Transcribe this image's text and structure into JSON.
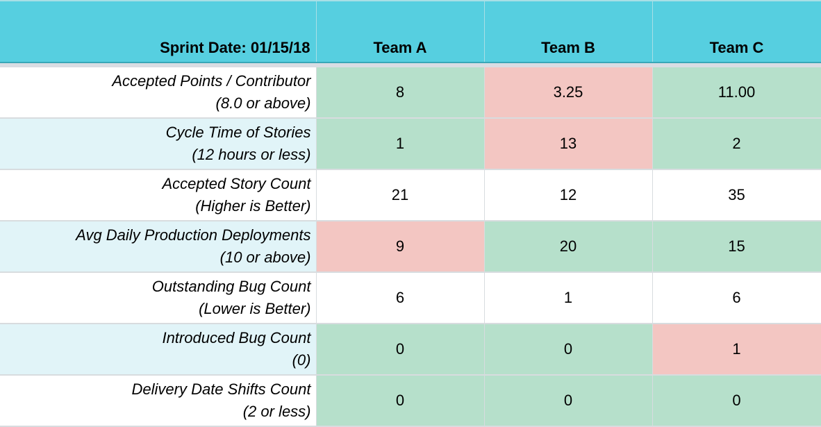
{
  "header": {
    "sprint_date": "Sprint Date: 01/15/18",
    "teams": [
      "Team A",
      "Team B",
      "Team C"
    ]
  },
  "colors": {
    "header_bg": "#56cfe0",
    "good": "#b6e0cb",
    "bad": "#f3c6c2",
    "band": "#e1f4f8"
  },
  "rows": [
    {
      "metric": "Accepted Points / Contributor",
      "target": "(8.0 or above)",
      "values": [
        "8",
        "3.25",
        "11.00"
      ],
      "status": [
        "good",
        "bad",
        "good"
      ]
    },
    {
      "metric": "Cycle Time of Stories",
      "target": "(12 hours or less)",
      "values": [
        "1",
        "13",
        "2"
      ],
      "status": [
        "good",
        "bad",
        "good"
      ]
    },
    {
      "metric": "Accepted Story Count",
      "target": "(Higher is Better)",
      "values": [
        "21",
        "12",
        "35"
      ],
      "status": [
        "none",
        "none",
        "none"
      ]
    },
    {
      "metric": "Avg Daily Production Deployments",
      "target": "(10 or above)",
      "values": [
        "9",
        "20",
        "15"
      ],
      "status": [
        "bad",
        "good",
        "good"
      ]
    },
    {
      "metric": "Outstanding Bug Count",
      "target": "(Lower is Better)",
      "values": [
        "6",
        "1",
        "6"
      ],
      "status": [
        "none",
        "none",
        "none"
      ]
    },
    {
      "metric": "Introduced Bug Count",
      "target": "(0)",
      "values": [
        "0",
        "0",
        "1"
      ],
      "status": [
        "good",
        "good",
        "bad"
      ]
    },
    {
      "metric": "Delivery Date Shifts Count",
      "target": "(2 or less)",
      "values": [
        "0",
        "0",
        "0"
      ],
      "status": [
        "good",
        "good",
        "good"
      ]
    }
  ]
}
